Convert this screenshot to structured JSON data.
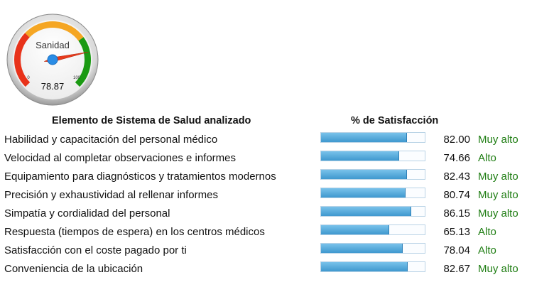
{
  "gauge": {
    "label": "Sanidad",
    "value": 78.87,
    "value_text": "78.87",
    "min_label": "0",
    "max_label": "100",
    "min": 0,
    "max": 100,
    "colors": {
      "low": "#e8321a",
      "mid": "#f5a623",
      "high": "#1a9a12",
      "needle": "#e83a1c",
      "hub": "#2a8de6"
    }
  },
  "table": {
    "header_element": "Elemento de Sistema de Salud analizado",
    "header_pct": "% de Satisfacción",
    "rows": [
      {
        "label": "Habilidad y capacitación del personal médico",
        "value": 82.0,
        "value_text": "82.00",
        "level": "Muy alto"
      },
      {
        "label": "Velocidad al completar observaciones e informes",
        "value": 74.66,
        "value_text": "74.66",
        "level": "Alto"
      },
      {
        "label": "Equipamiento para diagnósticos y tratamientos modernos",
        "value": 82.43,
        "value_text": "82.43",
        "level": "Muy alto"
      },
      {
        "label": "Precisión y exhaustividad al rellenar informes",
        "value": 80.74,
        "value_text": "80.74",
        "level": "Muy alto"
      },
      {
        "label": "Simpatía y cordialidad del personal",
        "value": 86.15,
        "value_text": "86.15",
        "level": "Muy alto"
      },
      {
        "label": "Respuesta (tiempos de espera) en los centros médicos",
        "value": 65.13,
        "value_text": "65.13",
        "level": "Alto"
      },
      {
        "label": "Satisfacción con el coste pagado por ti",
        "value": 78.04,
        "value_text": "78.04",
        "level": "Alto"
      },
      {
        "label": "Conveniencia de la ubicación",
        "value": 82.67,
        "value_text": "82.67",
        "level": "Muy alto"
      }
    ]
  }
}
